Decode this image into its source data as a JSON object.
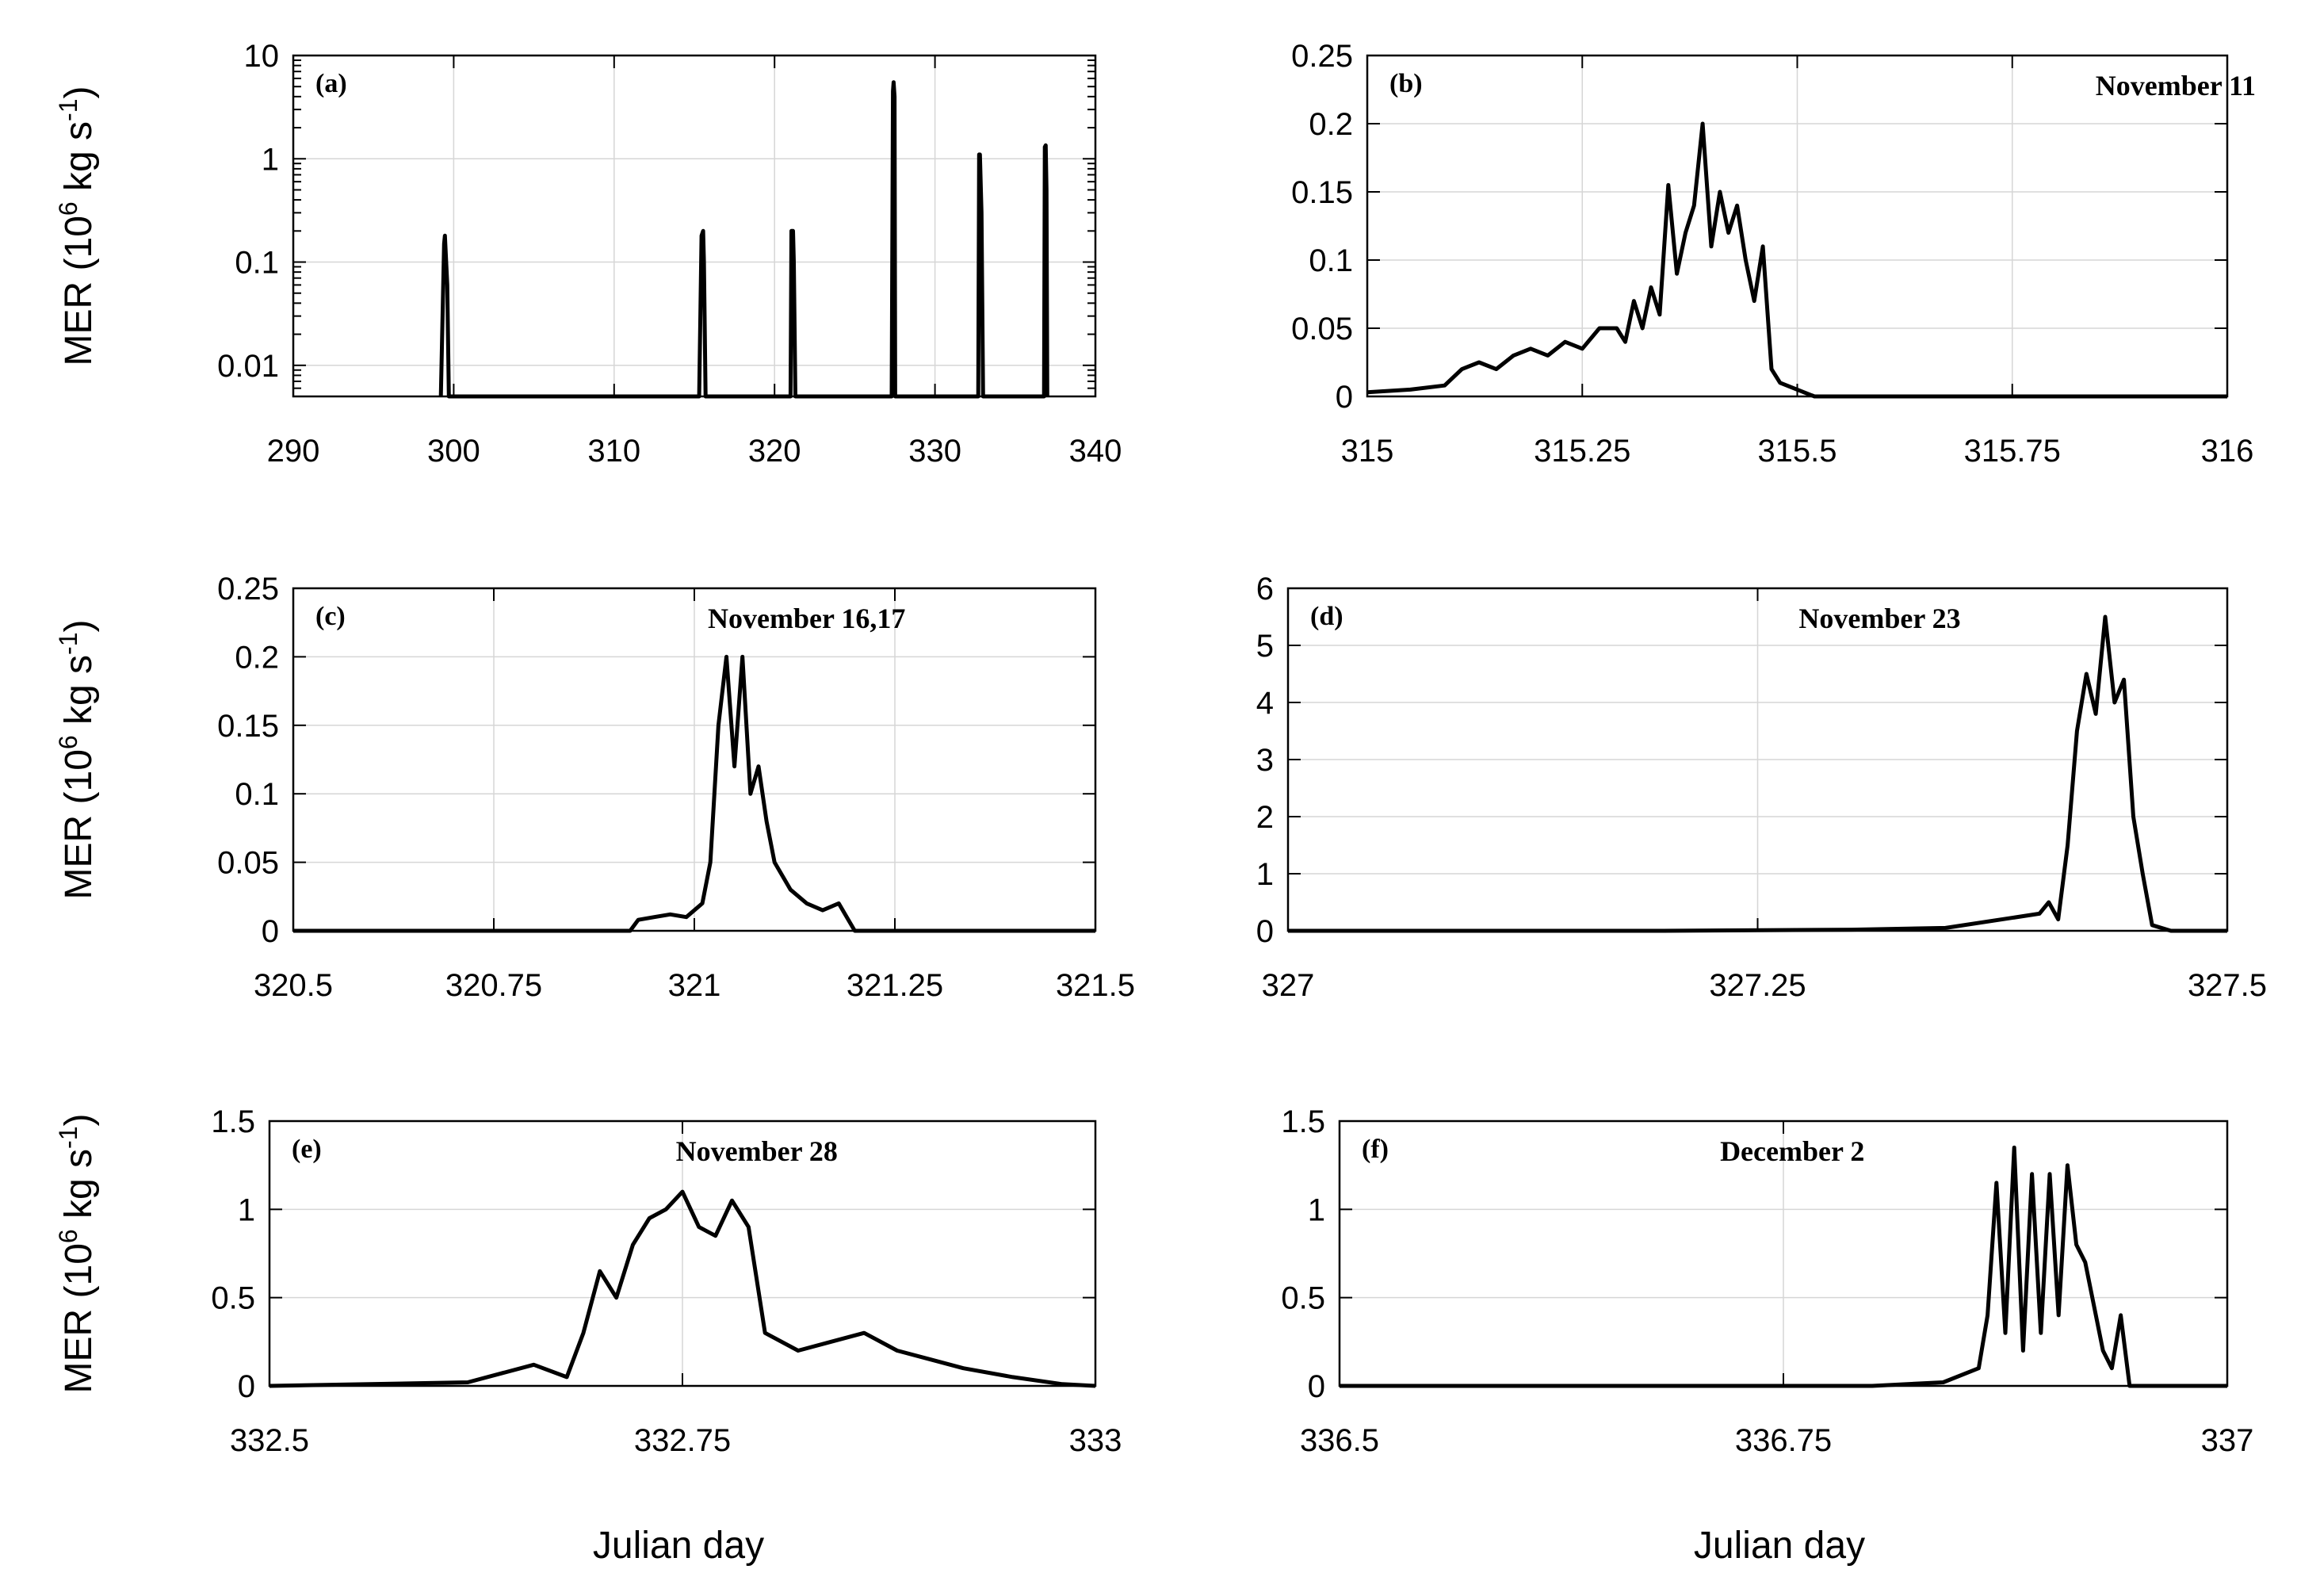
{
  "chart_data": [
    {
      "panel": "(a)",
      "type": "line",
      "note": "",
      "yscale": "log",
      "ylabel": "MER (10^6 kg s^-1)",
      "xlabel": "",
      "xlim": [
        290,
        340
      ],
      "ylim": [
        0.005,
        10
      ],
      "xticks": [
        290,
        300,
        310,
        320,
        330,
        340
      ],
      "xtick_labels": [
        "290",
        "300",
        "310",
        "320",
        "330",
        "340"
      ],
      "yticks": [
        0.01,
        0.1,
        1,
        10
      ],
      "ytick_labels": [
        "0.01",
        "0.1",
        "1",
        "10"
      ],
      "grid": true,
      "series": [
        {
          "x": [
            299.2,
            299.4,
            299.45,
            299.6,
            299.7,
            315.3,
            315.45,
            315.55,
            315.6,
            315.7,
            321.0,
            321.05,
            321.15,
            321.2,
            321.3,
            327.3,
            327.38,
            327.42,
            327.48,
            327.52,
            332.7,
            332.75,
            332.8,
            332.9,
            333.0,
            336.8,
            336.85,
            336.9,
            336.95,
            337.0
          ],
          "y": [
            0.005,
            0.15,
            0.18,
            0.06,
            0.005,
            0.005,
            0.18,
            0.2,
            0.1,
            0.005,
            0.005,
            0.2,
            0.2,
            0.1,
            0.005,
            0.005,
            4.5,
            5.5,
            4.0,
            0.005,
            0.005,
            1.1,
            1.1,
            0.3,
            0.005,
            0.005,
            1.3,
            1.35,
            0.5,
            0.005
          ]
        }
      ]
    },
    {
      "panel": "(b)",
      "type": "line",
      "note": "November 11",
      "yscale": "linear",
      "ylabel": "",
      "xlabel": "",
      "xlim": [
        315,
        316
      ],
      "ylim": [
        0,
        0.25
      ],
      "xticks": [
        315,
        315.25,
        315.5,
        315.75,
        316
      ],
      "xtick_labels": [
        "315",
        "315.25",
        "315.5",
        "315.75",
        "316"
      ],
      "yticks": [
        0,
        0.05,
        0.1,
        0.15,
        0.2,
        0.25
      ],
      "ytick_labels": [
        "0",
        "0.05",
        "0.1",
        "0.15",
        "0.2",
        "0.25"
      ],
      "grid": true,
      "series": [
        {
          "x": [
            315.0,
            315.05,
            315.09,
            315.11,
            315.13,
            315.15,
            315.17,
            315.19,
            315.21,
            315.23,
            315.25,
            315.27,
            315.29,
            315.3,
            315.31,
            315.32,
            315.33,
            315.34,
            315.35,
            315.36,
            315.37,
            315.38,
            315.39,
            315.4,
            315.41,
            315.42,
            315.43,
            315.44,
            315.45,
            315.46,
            315.47,
            315.48,
            315.5,
            315.52,
            316.0
          ],
          "y": [
            0.003,
            0.005,
            0.008,
            0.02,
            0.025,
            0.02,
            0.03,
            0.035,
            0.03,
            0.04,
            0.035,
            0.05,
            0.05,
            0.04,
            0.07,
            0.05,
            0.08,
            0.06,
            0.155,
            0.09,
            0.12,
            0.14,
            0.2,
            0.11,
            0.15,
            0.12,
            0.14,
            0.1,
            0.07,
            0.11,
            0.02,
            0.01,
            0.005,
            0.0,
            0.0
          ]
        }
      ]
    },
    {
      "panel": "(c)",
      "type": "line",
      "note": "November 16,17",
      "yscale": "linear",
      "ylabel": "MER (10^6 kg s^-1)",
      "xlabel": "",
      "xlim": [
        320.5,
        321.5
      ],
      "ylim": [
        0,
        0.25
      ],
      "xticks": [
        320.5,
        320.75,
        321,
        321.25,
        321.5
      ],
      "xtick_labels": [
        "320.5",
        "320.75",
        "321",
        "321.25",
        "321.5"
      ],
      "yticks": [
        0,
        0.05,
        0.1,
        0.15,
        0.2,
        0.25
      ],
      "ytick_labels": [
        "0",
        "0.05",
        "0.1",
        "0.15",
        "0.2",
        "0.25"
      ],
      "grid": true,
      "series": [
        {
          "x": [
            320.5,
            320.92,
            320.93,
            320.95,
            320.97,
            320.99,
            321.01,
            321.02,
            321.03,
            321.04,
            321.05,
            321.06,
            321.07,
            321.08,
            321.09,
            321.1,
            321.12,
            321.14,
            321.16,
            321.18,
            321.19,
            321.2,
            321.5
          ],
          "y": [
            0.0,
            0.0,
            0.008,
            0.01,
            0.012,
            0.01,
            0.02,
            0.05,
            0.15,
            0.2,
            0.12,
            0.2,
            0.1,
            0.12,
            0.08,
            0.05,
            0.03,
            0.02,
            0.015,
            0.02,
            0.01,
            0.0,
            0.0
          ]
        }
      ]
    },
    {
      "panel": "(d)",
      "type": "line",
      "note": "November 23",
      "yscale": "linear",
      "ylabel": "",
      "xlabel": "",
      "xlim": [
        327,
        327.5
      ],
      "ylim": [
        0,
        6
      ],
      "xticks": [
        327,
        327.25,
        327.5
      ],
      "xtick_labels": [
        "327",
        "327.25",
        "327.5"
      ],
      "yticks": [
        0,
        1,
        2,
        3,
        4,
        5,
        6
      ],
      "ytick_labels": [
        "0",
        "1",
        "2",
        "3",
        "4",
        "5",
        "6"
      ],
      "grid": true,
      "series": [
        {
          "x": [
            327.0,
            327.2,
            327.3,
            327.35,
            327.4,
            327.405,
            327.41,
            327.415,
            327.42,
            327.425,
            327.43,
            327.435,
            327.44,
            327.445,
            327.45,
            327.455,
            327.46,
            327.47,
            327.5
          ],
          "y": [
            0.0,
            0.0,
            0.02,
            0.05,
            0.3,
            0.5,
            0.2,
            1.5,
            3.5,
            4.5,
            3.8,
            5.5,
            4.0,
            4.4,
            2.0,
            1.0,
            0.1,
            0.0,
            0.0
          ]
        }
      ]
    },
    {
      "panel": "(e)",
      "type": "line",
      "note": "November 28",
      "yscale": "linear",
      "ylabel": "MER (10^6 kg s^-1)",
      "xlabel": "Julian day",
      "xlim": [
        332.5,
        333
      ],
      "ylim": [
        0,
        1.5
      ],
      "xticks": [
        332.5,
        332.75,
        333
      ],
      "xtick_labels": [
        "332.5",
        "332.75",
        "333"
      ],
      "yticks": [
        0,
        0.5,
        1,
        1.5
      ],
      "ytick_labels": [
        "0",
        "0.5",
        "1",
        "1.5"
      ],
      "grid": true,
      "series": [
        {
          "x": [
            332.5,
            332.62,
            332.66,
            332.68,
            332.69,
            332.7,
            332.71,
            332.72,
            332.73,
            332.74,
            332.75,
            332.76,
            332.77,
            332.78,
            332.79,
            332.8,
            332.82,
            332.84,
            332.86,
            332.88,
            332.9,
            332.92,
            332.95,
            332.98,
            333.0
          ],
          "y": [
            0.0,
            0.02,
            0.12,
            0.05,
            0.3,
            0.65,
            0.5,
            0.8,
            0.95,
            1.0,
            1.1,
            0.9,
            0.85,
            1.05,
            0.9,
            0.3,
            0.2,
            0.25,
            0.3,
            0.2,
            0.15,
            0.1,
            0.05,
            0.01,
            0.0
          ]
        }
      ]
    },
    {
      "panel": "(f)",
      "type": "line",
      "note": "December 2",
      "yscale": "linear",
      "ylabel": "",
      "xlabel": "Julian day",
      "xlim": [
        336.5,
        337
      ],
      "ylim": [
        0,
        1.5
      ],
      "xticks": [
        336.5,
        336.75,
        337
      ],
      "xtick_labels": [
        "336.5",
        "336.75",
        "337"
      ],
      "yticks": [
        0,
        0.5,
        1,
        1.5
      ],
      "ytick_labels": [
        "0",
        "0.5",
        "1",
        "1.5"
      ],
      "grid": true,
      "series": [
        {
          "x": [
            336.5,
            336.8,
            336.84,
            336.86,
            336.865,
            336.87,
            336.875,
            336.88,
            336.885,
            336.89,
            336.895,
            336.9,
            336.905,
            336.91,
            336.915,
            336.92,
            336.93,
            336.935,
            336.94,
            336.945,
            336.95,
            337.0
          ],
          "y": [
            0.0,
            0.0,
            0.02,
            0.1,
            0.4,
            1.15,
            0.3,
            1.35,
            0.2,
            1.2,
            0.3,
            1.2,
            0.4,
            1.25,
            0.8,
            0.7,
            0.2,
            0.1,
            0.4,
            0.0,
            0.0,
            0.0
          ]
        }
      ]
    }
  ]
}
